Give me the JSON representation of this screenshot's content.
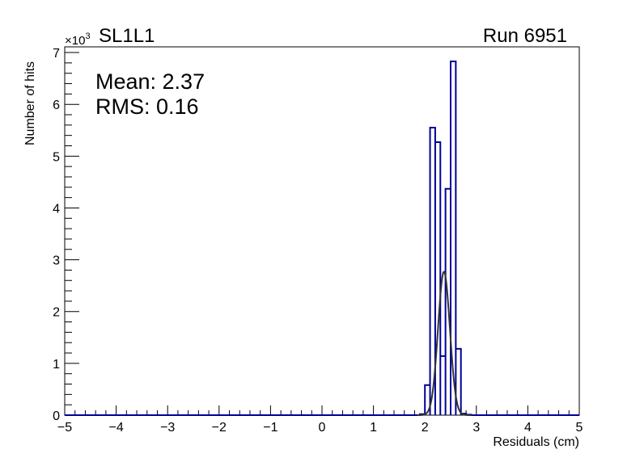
{
  "chart_data": {
    "type": "bar",
    "title": "SL1L1",
    "run_label": "Run 6951",
    "xlabel": "Residuals (cm)",
    "ylabel": "Number of hits",
    "y_multiplier": "×10",
    "y_multiplier_exp": "3",
    "stats": {
      "mean": "Mean: 2.37",
      "rms": "RMS:  0.16"
    },
    "xlim": [
      -5,
      5
    ],
    "ylim": [
      0,
      7.11
    ],
    "x_ticks": [
      "−5",
      "−4",
      "−3",
      "−2",
      "−1",
      "0",
      "1",
      "2",
      "3",
      "4",
      "5"
    ],
    "y_ticks": [
      "0",
      "1",
      "2",
      "3",
      "4",
      "5",
      "6",
      "7"
    ],
    "bin_width": 0.1,
    "bins": [
      {
        "low": 1.9,
        "value": 0.02
      },
      {
        "low": 2.0,
        "value": 0.58
      },
      {
        "low": 2.1,
        "value": 5.55
      },
      {
        "low": 2.2,
        "value": 5.27
      },
      {
        "low": 2.3,
        "value": 1.14
      },
      {
        "low": 2.4,
        "value": 4.37
      },
      {
        "low": 2.5,
        "value": 6.83
      },
      {
        "low": 2.6,
        "value": 1.28
      },
      {
        "low": 2.7,
        "value": 0.03
      },
      {
        "low": 2.8,
        "value": 0.01
      }
    ],
    "fit": {
      "type": "gaussian",
      "mean": 2.37,
      "sigma": 0.115,
      "amplitude": 2.77,
      "range": [
        1.85,
        2.9
      ]
    },
    "colors": {
      "histogram": "#000099",
      "fit": "#333333"
    }
  }
}
